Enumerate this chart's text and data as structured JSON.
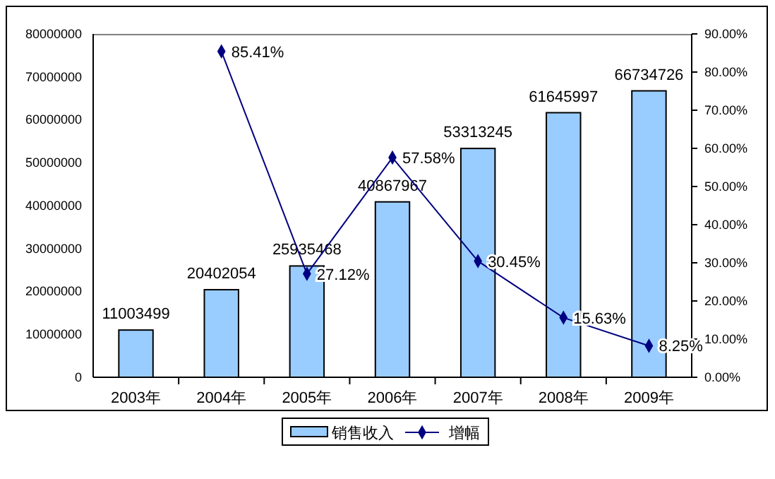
{
  "chart_data": {
    "type": "bar",
    "categories": [
      "2003年",
      "2004年",
      "2005年",
      "2006年",
      "2007年",
      "2008年",
      "2009年"
    ],
    "series": [
      {
        "name": "销售收入",
        "color": "#99ccff",
        "values": [
          11003499,
          20402054,
          25935468,
          40867967,
          53313245,
          61645997,
          66734726
        ],
        "value_labels": [
          "11003499",
          "20402054",
          "25935468",
          "40867967",
          "53313245",
          "61645997",
          "66734726"
        ]
      },
      {
        "name": "增幅",
        "type": "line",
        "axis": "y2",
        "color": "#000080",
        "values": [
          null,
          85.41,
          27.12,
          57.58,
          30.45,
          15.63,
          8.25
        ],
        "value_labels": [
          null,
          "85.41%",
          "27.12%",
          "57.58%",
          "30.45%",
          "15.63%",
          "8.25%"
        ]
      }
    ],
    "ylim": [
      0,
      80000000
    ],
    "yticks": [
      0,
      10000000,
      20000000,
      30000000,
      40000000,
      50000000,
      60000000,
      70000000,
      80000000
    ],
    "y2lim": [
      0,
      90
    ],
    "y2ticks": [
      {
        "value": 0,
        "label": "0.00%"
      },
      {
        "value": 10,
        "label": "10.00%"
      },
      {
        "value": 20,
        "label": "20.00%"
      },
      {
        "value": 30,
        "label": "30.00%"
      },
      {
        "value": 40,
        "label": "40.00%"
      },
      {
        "value": 50,
        "label": "50.00%"
      },
      {
        "value": 60,
        "label": "60.00%"
      },
      {
        "value": 70,
        "label": "70.00%"
      },
      {
        "value": 80,
        "label": "80.00%"
      },
      {
        "value": 90,
        "label": "90.00%"
      }
    ],
    "marker": "diamond",
    "legend": "bottom",
    "grid": false
  }
}
